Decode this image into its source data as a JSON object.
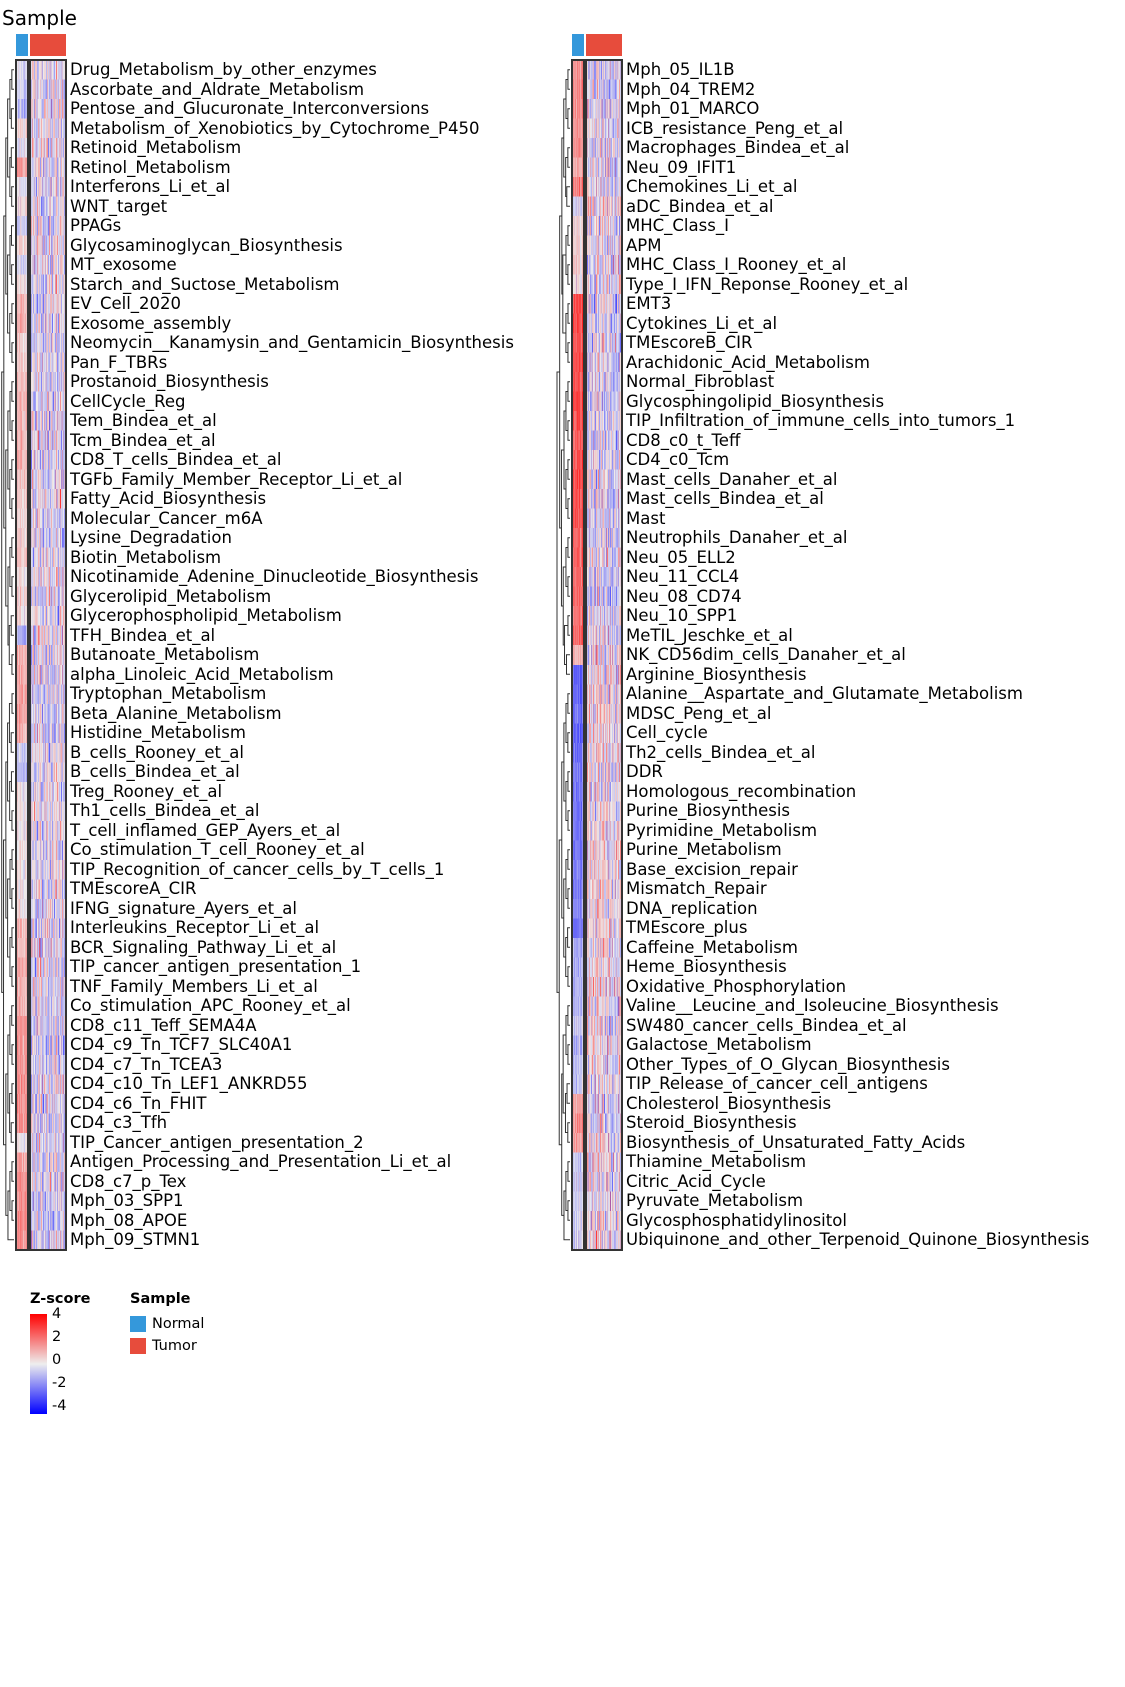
{
  "chart_data": {
    "type": "heatmap",
    "title": "Sample",
    "column_groups": [
      {
        "name": "Normal",
        "color": "#3498DB",
        "n_columns": 32
      },
      {
        "name": "Tumor",
        "color": "#E74C3C",
        "n_columns": 300
      }
    ],
    "color_scale": {
      "title": "Z-score",
      "min": -4,
      "max": 4,
      "ticks": [
        4,
        2,
        0,
        -2,
        -4
      ],
      "colors": {
        "low": "#0000FF",
        "mid": "#EEEEEE",
        "high": "#FF0000"
      }
    },
    "legend": {
      "title": "Sample",
      "entries": [
        "Normal",
        "Tumor"
      ],
      "placement": "right"
    },
    "rows": [
      "Drug_Metabolism_by_other_enzymes",
      "Ascorbate_and_Aldrate_Metabolism",
      "Pentose_and_Glucuronate_Interconversions",
      "Metabolism_of_Xenobiotics_by_Cytochrome_P450",
      "Retinoid_Metabolism",
      "Retinol_Metabolism",
      "Interferons_Li_et_al",
      "WNT_target",
      "PPAGs",
      "Glycosaminoglycan_Biosynthesis",
      "MT_exosome",
      "Starch_and_Suctose_Metabolism",
      "EV_Cell_2020",
      "Exosome_assembly",
      "Neomycin__Kanamysin_and_Gentamicin_Biosynthesis",
      "Pan_F_TBRs",
      "Prostanoid_Biosynthesis",
      "CellCycle_Reg",
      "Tem_Bindea_et_al",
      "Tcm_Bindea_et_al",
      "CD8_T_cells_Bindea_et_al",
      "TGFb_Family_Member_Receptor_Li_et_al",
      "Fatty_Acid_Biosynthesis",
      "Molecular_Cancer_m6A",
      "Lysine_Degradation",
      "Biotin_Metabolism",
      "Nicotinamide_Adenine_Dinucleotide_Biosynthesis",
      "Glycerolipid_Metabolism",
      "Glycerophospholipid_Metabolism",
      "TFH_Bindea_et_al",
      "Butanoate_Metabolism",
      "alpha_Linoleic_Acid_Metabolism",
      "Tryptophan_Metabolism",
      "Beta_Alanine_Metabolism",
      "Histidine_Metabolism",
      "B_cells_Rooney_et_al",
      "B_cells_Bindea_et_al",
      "Treg_Rooney_et_al",
      "Th1_cells_Bindea_et_al",
      "T_cell_inflamed_GEP_Ayers_et_al",
      "Co_stimulation_T_cell_Rooney_et_al",
      "TIP_Recognition_of_cancer_cells_by_T_cells_1",
      "TMEscoreA_CIR",
      "IFNG_signature_Ayers_et_al",
      "Interleukins_Receptor_Li_et_al",
      "BCR_Signaling_Pathway_Li_et_al",
      "TIP_cancer_antigen_presentation_1",
      "TNF_Family_Members_Li_et_al",
      "Co_stimulation_APC_Rooney_et_al",
      "CD8_c11_Teff_SEMA4A",
      "CD4_c9_Tn_TCF7_SLC40A1",
      "CD4_c7_Tn_TCEA3",
      "CD4_c10_Tn_LEF1_ANKRD55",
      "CD4_c6_Tn_FHIT",
      "CD4_c3_Tfh",
      "TIP_Cancer_antigen_presentation_2",
      "Antigen_Processing_and_Presentation_Li_et_al",
      "CD8_c7_p_Tex",
      "Mph_03_SPP1",
      "Mph_08_APOE",
      "Mph_09_STMN1",
      "Mph_05_IL1B",
      "Mph_04_TREM2",
      "Mph_01_MARCO",
      "ICB_resistance_Peng_et_al",
      "Macrophages_Bindea_et_al",
      "Neu_09_IFIT1",
      "Chemokines_Li_et_al",
      "aDC_Bindea_et_al",
      "MHC_Class_I",
      "APM",
      "MHC_Class_I_Rooney_et_al",
      "Type_I_IFN_Reponse_Rooney_et_al",
      "EMT3",
      "Cytokines_Li_et_al",
      "TMEscoreB_CIR",
      "Arachidonic_Acid_Metabolism",
      "Normal_Fibroblast",
      "Glycosphingolipid_Biosynthesis",
      "TIP_Infiltration_of_immune_cells_into_tumors_1",
      "CD8_c0_t_Teff",
      "CD4_c0_Tcm",
      "Mast_cells_Danaher_et_al",
      "Mast_cells_Bindea_et_al",
      "Mast",
      "Neutrophils_Danaher_et_al",
      "Neu_05_ELL2",
      "Neu_11_CCL4",
      "Neu_08_CD74",
      "Neu_10_SPP1",
      "MeTIL_Jeschke_et_al",
      "NK_CD56dim_cells_Danaher_et_al",
      "Arginine_Biosynthesis",
      "Alanine__Aspartate_and_Glutamate_Metabolism",
      "MDSC_Peng_et_al",
      "Cell_cycle",
      "Th2_cells_Bindea_et_al",
      "DDR",
      "Homologous_recombination",
      "Purine_Biosynthesis",
      "Pyrimidine_Metabolism",
      "Purine_Metabolism",
      "Base_excision_repair",
      "Mismatch_Repair",
      "DNA_replication",
      "TMEscore_plus",
      "Caffeine_Metabolism",
      "Heme_Biosynthesis",
      "Oxidative_Phosphorylation",
      "Valine__Leucine_and_Isoleucine_Biosynthesis",
      "SW480_cancer_cells_Bindea_et_al",
      "Galactose_Metabolism",
      "Other_Types_of_O_Glycan_Biosynthesis",
      "TIP_Release_of_cancer_cell_antigens",
      "Cholesterol_Biosynthesis",
      "Steroid_Biosynthesis",
      "Biosynthesis_of_Unsaturated_Fatty_Acids",
      "Thiamine_Metabolism",
      "Citric_Acid_Cycle",
      "Pyruvate_Metabolism",
      "Glycosphosphatidylinositol",
      "Ubiquinone_and_other_Terpenoid_Quinone_Biosynthesis"
    ],
    "normal_mean_zscore": [
      -0.3,
      -0.6,
      -0.9,
      0.4,
      -0.2,
      1.2,
      -0.1,
      0.5,
      -0.5,
      0.5,
      -0.4,
      0.3,
      0.9,
      1.1,
      0.5,
      0.6,
      0.8,
      1.0,
      0.9,
      0.9,
      1.0,
      0.7,
      0.6,
      0.4,
      0.3,
      0.6,
      0.2,
      0.3,
      0.4,
      -1.2,
      1.0,
      1.1,
      1.3,
      1.3,
      1.0,
      -0.6,
      -1.0,
      0.1,
      0.3,
      0.2,
      0.2,
      0.2,
      0.1,
      0.3,
      1.0,
      0.9,
      1.1,
      1.0,
      1.0,
      1.5,
      1.5,
      1.5,
      1.6,
      1.5,
      1.6,
      0.0,
      1.4,
      1.5,
      1.6,
      1.6,
      1.6,
      1.5,
      1.6,
      1.6,
      1.4,
      1.5,
      1.2,
      1.9,
      -0.5,
      0.3,
      0.4,
      0.5,
      0.3,
      2.8,
      2.8,
      2.6,
      2.7,
      2.6,
      2.7,
      2.6,
      2.5,
      2.6,
      2.7,
      2.6,
      2.5,
      2.4,
      2.3,
      2.2,
      2.3,
      2.2,
      2.3,
      1.0,
      -2.4,
      -2.2,
      -2.0,
      -2.3,
      -2.0,
      -1.8,
      -1.9,
      -2.0,
      -2.0,
      -2.0,
      -1.8,
      -1.8,
      -1.7,
      -2.0,
      -1.2,
      -1.1,
      -1.0,
      -0.9,
      -0.7,
      -0.9,
      -0.8,
      -0.6,
      1.3,
      1.6,
      1.2,
      -0.7,
      -0.6,
      -0.5,
      -0.4,
      -0.5
    ]
  }
}
